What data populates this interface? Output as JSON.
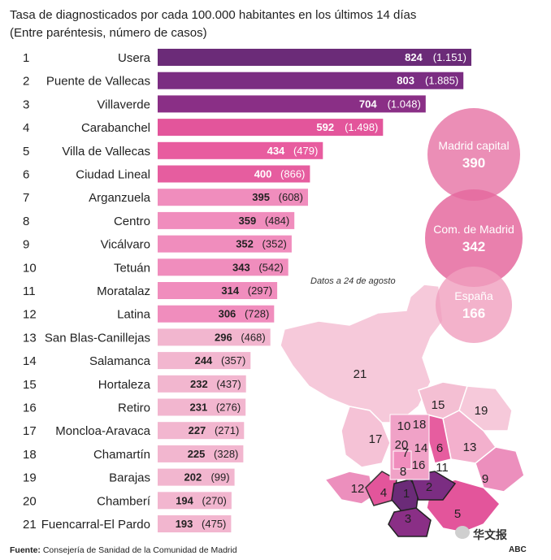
{
  "title": "Tasa de diagnosticados por cada 100.000 habitantes en los últimos 14 días",
  "subtitle": "(Entre paréntesis, número de casos)",
  "date_note": "Datos a 24 de agosto",
  "footer": {
    "label": "Fuente:",
    "text": "Consejería de Sanidad de la Comunidad de Madrid"
  },
  "credit": "ABC",
  "watermark": "华文报",
  "chart_data": {
    "type": "bar",
    "orientation": "horizontal",
    "title": "Tasa de diagnosticados por cada 100.000 habitantes en los últimos 14 días",
    "subtitle": "(Entre paréntesis, número de casos)",
    "xlim": [
      0,
      824
    ],
    "rows": [
      {
        "rank": "1",
        "name": "Usera",
        "value": 824,
        "cases": "(1.151)",
        "color": "#6b2b78"
      },
      {
        "rank": "2",
        "name": "Puente de Vallecas",
        "value": 803,
        "cases": "(1.885)",
        "color": "#7b2d82"
      },
      {
        "rank": "3",
        "name": "Villaverde",
        "value": 704,
        "cases": "(1.048)",
        "color": "#8a2f86"
      },
      {
        "rank": "4",
        "name": "Carabanchel",
        "value": 592,
        "cases": "(1.498)",
        "color": "#e3559b"
      },
      {
        "rank": "5",
        "name": "Villa de Vallecas",
        "value": 434,
        "cases": "(479)",
        "color": "#e85c9f"
      },
      {
        "rank": "6",
        "name": "Ciudad Lineal",
        "value": 400,
        "cases": "(866)",
        "color": "#e65d9f"
      },
      {
        "rank": "7",
        "name": "Arganzuela",
        "value": 395,
        "cases": "(608)",
        "color": "#f08dbd"
      },
      {
        "rank": "8",
        "name": "Centro",
        "value": 359,
        "cases": "(484)",
        "color": "#f08dbd"
      },
      {
        "rank": "9",
        "name": "Vicálvaro",
        "value": 352,
        "cases": "(352)",
        "color": "#f08dbd"
      },
      {
        "rank": "10",
        "name": "Tetuán",
        "value": 343,
        "cases": "(542)",
        "color": "#f08dbd"
      },
      {
        "rank": "11",
        "name": "Moratalaz",
        "value": 314,
        "cases": "(297)",
        "color": "#f08dbd"
      },
      {
        "rank": "12",
        "name": "Latina",
        "value": 306,
        "cases": "(728)",
        "color": "#f08dbd"
      },
      {
        "rank": "13",
        "name": "San Blas-Canillejas",
        "value": 296,
        "cases": "(468)",
        "color": "#f2b6cf"
      },
      {
        "rank": "14",
        "name": "Salamanca",
        "value": 244,
        "cases": "(357)",
        "color": "#f2b6cf"
      },
      {
        "rank": "15",
        "name": "Hortaleza",
        "value": 232,
        "cases": "(437)",
        "color": "#f2b6cf"
      },
      {
        "rank": "16",
        "name": "Retiro",
        "value": 231,
        "cases": "(276)",
        "color": "#f2b6cf"
      },
      {
        "rank": "17",
        "name": "Moncloa-Aravaca",
        "value": 227,
        "cases": "(271)",
        "color": "#f2b6cf"
      },
      {
        "rank": "18",
        "name": "Chamartín",
        "value": 225,
        "cases": "(328)",
        "color": "#f2b6cf"
      },
      {
        "rank": "19",
        "name": "Barajas",
        "value": 202,
        "cases": "(99)",
        "color": "#f2b6cf"
      },
      {
        "rank": "20",
        "name": "Chamberí",
        "value": 194,
        "cases": "(270)",
        "color": "#f2b6cf"
      },
      {
        "rank": "21",
        "name": "Fuencarral-El Pardo",
        "value": 193,
        "cases": "(475)",
        "color": "#f2b6cf"
      }
    ],
    "comparisons": [
      {
        "label": "Madrid capital",
        "value": 390
      },
      {
        "label": "Com. de Madrid",
        "value": 342
      },
      {
        "label": "España",
        "value": 166
      }
    ],
    "map_labels": [
      "1",
      "2",
      "3",
      "4",
      "5",
      "6",
      "7",
      "8",
      "9",
      "10",
      "12",
      "13",
      "14",
      "15",
      "16",
      "17",
      "18",
      "19",
      "20",
      "11",
      "21"
    ]
  }
}
